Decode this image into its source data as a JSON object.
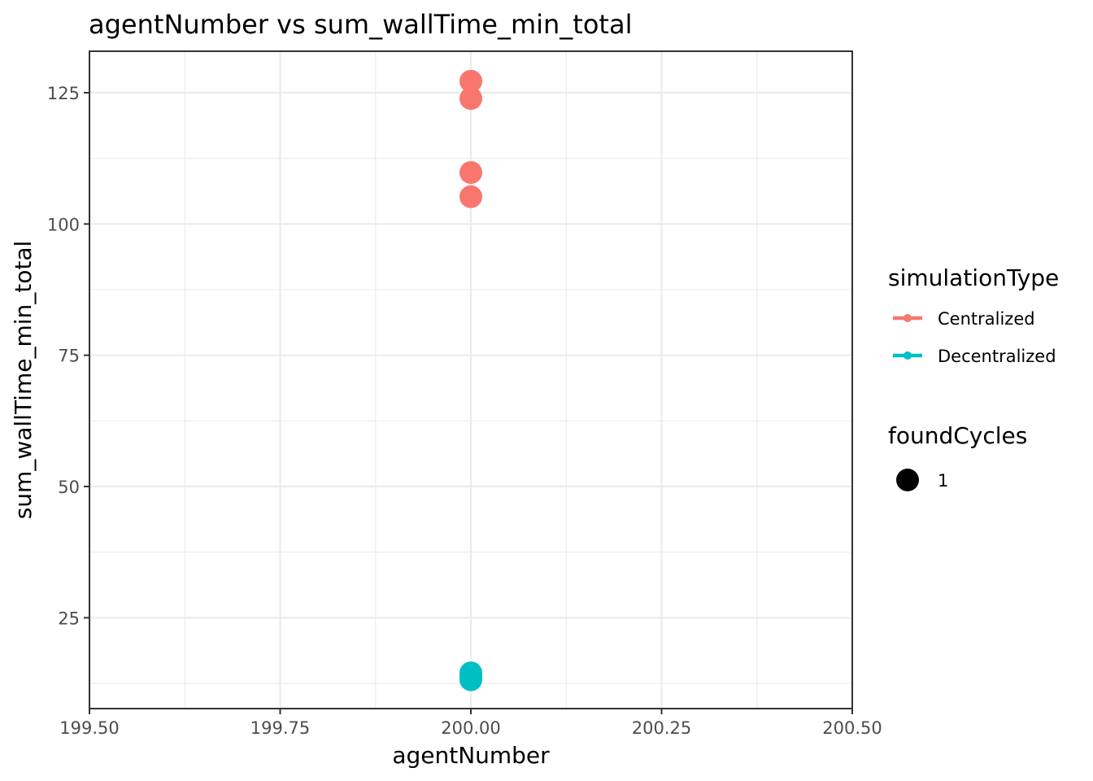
{
  "chart_data": {
    "type": "scatter",
    "title": "agentNumber  vs  sum_wallTime_min_total",
    "xlabel": "agentNumber",
    "ylabel": "sum_wallTime_min_total",
    "xlim": [
      199.5,
      200.5
    ],
    "ylim": [
      7.7,
      132.9
    ],
    "x_ticks": [
      199.5,
      199.75,
      200.0,
      200.25,
      200.5
    ],
    "x_tick_labels": [
      "199.50",
      "199.75",
      "200.00",
      "200.25",
      "200.50"
    ],
    "x_minor_ticks": [
      199.625,
      199.875,
      200.125,
      200.375
    ],
    "y_ticks": [
      25,
      50,
      75,
      100,
      125
    ],
    "y_tick_labels": [
      "25",
      "50",
      "75",
      "100",
      "125"
    ],
    "y_minor_ticks": [
      12.5,
      37.5,
      62.5,
      87.5,
      112.5
    ],
    "grid": true,
    "legend_position": "right",
    "series": [
      {
        "name": "Centralized",
        "color": "#F8766D",
        "points": [
          {
            "x": 200.0,
            "y": 127.2
          },
          {
            "x": 200.0,
            "y": 123.9
          },
          {
            "x": 200.0,
            "y": 109.8
          },
          {
            "x": 200.0,
            "y": 105.2
          }
        ]
      },
      {
        "name": "Decentralized",
        "color": "#00BFC4",
        "points": [
          {
            "x": 200.0,
            "y": 14.5
          },
          {
            "x": 200.0,
            "y": 13.8
          },
          {
            "x": 200.0,
            "y": 13.2
          }
        ]
      }
    ],
    "legends": [
      {
        "title": "simulationType",
        "kind": "color",
        "entries": [
          {
            "label": "Centralized",
            "color": "#F8766D"
          },
          {
            "label": "Decentralized",
            "color": "#00BFC4"
          }
        ]
      },
      {
        "title": "foundCycles",
        "kind": "size",
        "entries": [
          {
            "label": "1",
            "color": "#000000"
          }
        ]
      }
    ]
  }
}
